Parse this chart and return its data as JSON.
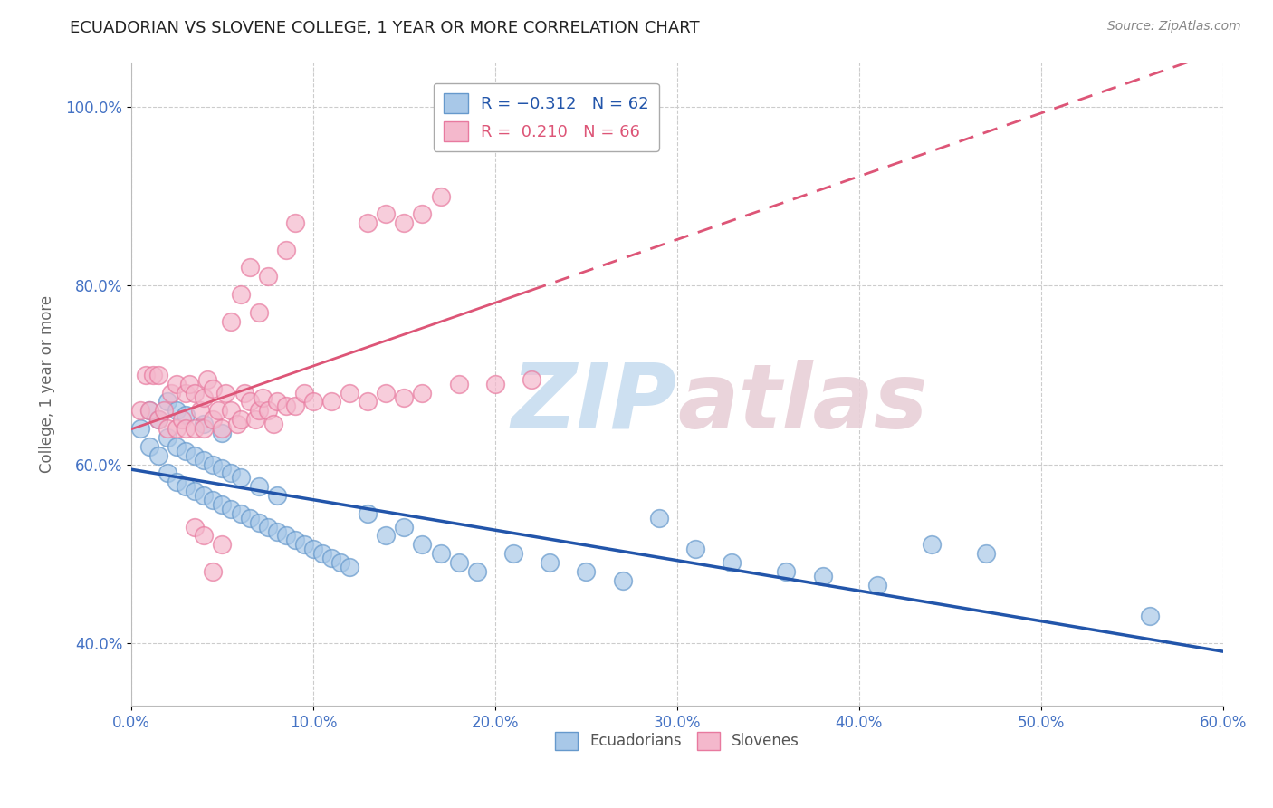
{
  "title": "ECUADORIAN VS SLOVENE COLLEGE, 1 YEAR OR MORE CORRELATION CHART",
  "source": "Source: ZipAtlas.com",
  "ylabel": "College, 1 year or more",
  "xlim": [
    0.0,
    0.6
  ],
  "ylim": [
    0.33,
    1.05
  ],
  "ytick_vals": [
    0.4,
    0.6,
    0.8,
    1.0
  ],
  "ytick_labels": [
    "40.0%",
    "60.0%",
    "80.0%",
    "100.0%"
  ],
  "xtick_vals": [
    0.0,
    0.1,
    0.2,
    0.3,
    0.4,
    0.5,
    0.6
  ],
  "blue_R": -0.312,
  "blue_N": 62,
  "pink_R": 0.21,
  "pink_N": 66,
  "blue_color": "#a8c8e8",
  "pink_color": "#f4b8cc",
  "blue_edge_color": "#6699cc",
  "pink_edge_color": "#e87a9f",
  "blue_line_color": "#2255aa",
  "pink_line_color": "#dd5577",
  "watermark_color": "#c8ddf0",
  "watermark_color2": "#e8d0d8",
  "legend_label_blue": "Ecuadorians",
  "legend_label_pink": "Slovenes",
  "blue_points_x": [
    0.005,
    0.01,
    0.01,
    0.015,
    0.015,
    0.02,
    0.02,
    0.02,
    0.025,
    0.025,
    0.025,
    0.03,
    0.03,
    0.03,
    0.035,
    0.035,
    0.04,
    0.04,
    0.04,
    0.045,
    0.045,
    0.05,
    0.05,
    0.05,
    0.055,
    0.055,
    0.06,
    0.06,
    0.065,
    0.07,
    0.07,
    0.075,
    0.08,
    0.08,
    0.085,
    0.09,
    0.095,
    0.1,
    0.105,
    0.11,
    0.115,
    0.12,
    0.13,
    0.14,
    0.15,
    0.16,
    0.17,
    0.18,
    0.19,
    0.21,
    0.23,
    0.25,
    0.27,
    0.29,
    0.31,
    0.33,
    0.36,
    0.38,
    0.41,
    0.44,
    0.47,
    0.56
  ],
  "blue_points_y": [
    0.64,
    0.62,
    0.66,
    0.61,
    0.65,
    0.59,
    0.63,
    0.67,
    0.58,
    0.62,
    0.66,
    0.575,
    0.615,
    0.655,
    0.57,
    0.61,
    0.565,
    0.605,
    0.645,
    0.56,
    0.6,
    0.555,
    0.595,
    0.635,
    0.55,
    0.59,
    0.545,
    0.585,
    0.54,
    0.535,
    0.575,
    0.53,
    0.525,
    0.565,
    0.52,
    0.515,
    0.51,
    0.505,
    0.5,
    0.495,
    0.49,
    0.485,
    0.545,
    0.52,
    0.53,
    0.51,
    0.5,
    0.49,
    0.48,
    0.5,
    0.49,
    0.48,
    0.47,
    0.54,
    0.505,
    0.49,
    0.48,
    0.475,
    0.465,
    0.51,
    0.5,
    0.43
  ],
  "pink_points_x": [
    0.005,
    0.008,
    0.01,
    0.012,
    0.015,
    0.015,
    0.018,
    0.02,
    0.022,
    0.025,
    0.025,
    0.028,
    0.03,
    0.03,
    0.032,
    0.035,
    0.035,
    0.038,
    0.04,
    0.04,
    0.042,
    0.045,
    0.045,
    0.048,
    0.05,
    0.052,
    0.055,
    0.058,
    0.06,
    0.062,
    0.065,
    0.068,
    0.07,
    0.072,
    0.075,
    0.078,
    0.08,
    0.085,
    0.09,
    0.095,
    0.1,
    0.11,
    0.12,
    0.13,
    0.14,
    0.15,
    0.16,
    0.18,
    0.2,
    0.22,
    0.055,
    0.06,
    0.065,
    0.07,
    0.075,
    0.085,
    0.09,
    0.13,
    0.14,
    0.15,
    0.16,
    0.17,
    0.035,
    0.04,
    0.045,
    0.05
  ],
  "pink_points_y": [
    0.66,
    0.7,
    0.66,
    0.7,
    0.65,
    0.7,
    0.66,
    0.64,
    0.68,
    0.64,
    0.69,
    0.65,
    0.64,
    0.68,
    0.69,
    0.64,
    0.68,
    0.66,
    0.64,
    0.675,
    0.695,
    0.65,
    0.685,
    0.66,
    0.64,
    0.68,
    0.66,
    0.645,
    0.65,
    0.68,
    0.67,
    0.65,
    0.66,
    0.675,
    0.66,
    0.645,
    0.67,
    0.665,
    0.665,
    0.68,
    0.67,
    0.67,
    0.68,
    0.67,
    0.68,
    0.675,
    0.68,
    0.69,
    0.69,
    0.695,
    0.76,
    0.79,
    0.82,
    0.77,
    0.81,
    0.84,
    0.87,
    0.87,
    0.88,
    0.87,
    0.88,
    0.9,
    0.53,
    0.52,
    0.48,
    0.51
  ]
}
